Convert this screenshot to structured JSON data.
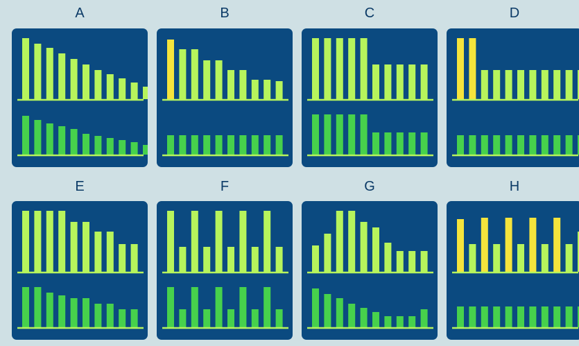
{
  "colors": {
    "page_bg": "#cfe0e4",
    "panel_bg": "#0b4a80",
    "top_bar": "#b7f45c",
    "highlight_bar": "#f5e43c",
    "bottom_bar": "#47d14c",
    "baseline": "#b7f45c",
    "label_text": "#0b3a66"
  },
  "panels": [
    {
      "label": "A",
      "top": [
        88,
        80,
        74,
        66,
        58,
        50,
        42,
        36,
        30,
        24,
        18
      ],
      "bottom": [
        56,
        50,
        45,
        41,
        37,
        30,
        27,
        24,
        21,
        18,
        14
      ],
      "highlight": []
    },
    {
      "label": "B",
      "top": [
        86,
        72,
        72,
        56,
        56,
        42,
        42,
        28,
        28,
        26
      ],
      "bottom": [
        28,
        28,
        28,
        28,
        28,
        28,
        28,
        28,
        28,
        28
      ],
      "highlight": [
        0
      ]
    },
    {
      "label": "C",
      "top": [
        88,
        88,
        88,
        88,
        88,
        50,
        50,
        50,
        50,
        50
      ],
      "bottom": [
        58,
        58,
        58,
        58,
        58,
        32,
        32,
        32,
        32,
        32
      ],
      "highlight": []
    },
    {
      "label": "D",
      "top": [
        88,
        88,
        42,
        42,
        42,
        42,
        42,
        42,
        42,
        42,
        42
      ],
      "bottom": [
        28,
        28,
        28,
        28,
        28,
        28,
        28,
        28,
        28,
        28,
        28
      ],
      "highlight": [
        0,
        1
      ]
    },
    {
      "label": "E",
      "top": [
        88,
        88,
        88,
        88,
        72,
        72,
        58,
        58,
        40,
        40
      ],
      "bottom": [
        58,
        58,
        50,
        46,
        42,
        42,
        34,
        34,
        26,
        26
      ],
      "highlight": []
    },
    {
      "label": "F",
      "top": [
        88,
        36,
        88,
        36,
        88,
        36,
        88,
        36,
        88,
        36
      ],
      "bottom": [
        58,
        26,
        58,
        26,
        58,
        26,
        58,
        26,
        58,
        26
      ],
      "highlight": []
    },
    {
      "label": "G",
      "top": [
        38,
        55,
        88,
        88,
        72,
        64,
        42,
        30,
        30,
        30
      ],
      "bottom": [
        56,
        48,
        42,
        34,
        28,
        22,
        16,
        16,
        16,
        26
      ],
      "highlight": []
    },
    {
      "label": "H",
      "top": [
        76,
        40,
        78,
        40,
        78,
        40,
        78,
        40,
        78,
        40,
        58
      ],
      "bottom": [
        30,
        30,
        30,
        30,
        30,
        30,
        30,
        30,
        30,
        30,
        30
      ],
      "highlight": [
        0,
        2,
        4,
        6,
        8
      ]
    }
  ]
}
